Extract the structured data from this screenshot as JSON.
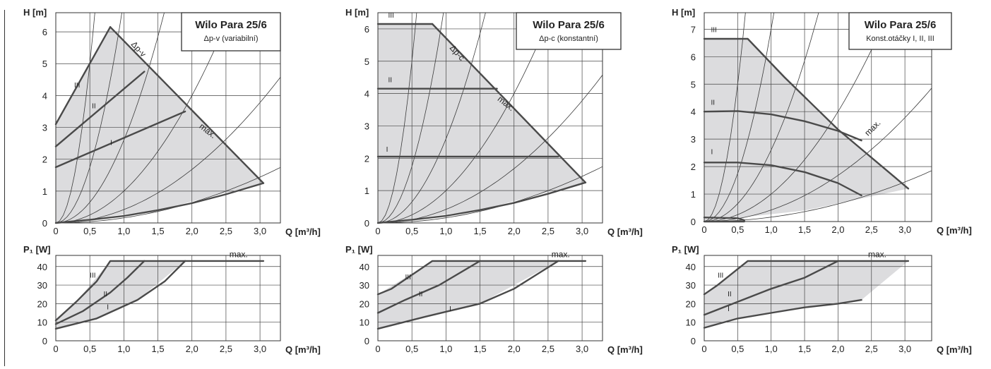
{
  "chart_data": [
    {
      "type": "line",
      "id": "h1",
      "title": "Wilo Para 25/6",
      "subtitle": "Δp-v (variabilní)",
      "ylabel": "H [m]",
      "xlabel": "Q [m³/h]",
      "xlim": [
        0,
        3.3
      ],
      "ylim": [
        0,
        6.6
      ],
      "xticks": [
        "0",
        "0,5",
        "1,0",
        "1,5",
        "2,0",
        "2,5",
        "3,0"
      ],
      "yticks": [
        "0",
        "1",
        "2",
        "3",
        "4",
        "5",
        "6"
      ],
      "envelope": [
        [
          0,
          0
        ],
        [
          0,
          3.1
        ],
        [
          0.8,
          6.15
        ],
        [
          3.05,
          1.25
        ],
        [
          1.5,
          0.4
        ],
        [
          0,
          0
        ]
      ],
      "series": [
        {
          "name": "III",
          "points": [
            [
              0,
              3.1
            ],
            [
              0.8,
              6.15
            ]
          ]
        },
        {
          "name": "II",
          "points": [
            [
              0,
              2.4
            ],
            [
              1.3,
              4.75
            ]
          ]
        },
        {
          "name": "I",
          "points": [
            [
              0,
              1.75
            ],
            [
              1.9,
              3.5
            ]
          ]
        },
        {
          "name": "max.",
          "points": [
            [
              0.8,
              6.15
            ],
            [
              3.05,
              1.25
            ]
          ]
        },
        {
          "name": "",
          "points": [
            [
              0,
              0
            ],
            [
              0.5,
              0.1
            ],
            [
              1.0,
              0.22
            ],
            [
              1.5,
              0.4
            ],
            [
              2.0,
              0.62
            ],
            [
              2.5,
              0.9
            ],
            [
              3.05,
              1.25
            ]
          ]
        }
      ],
      "annotations": [
        {
          "text": "Δp-v",
          "x": 1.1,
          "y": 5.6
        },
        {
          "text": "III",
          "x": 0.27,
          "y": 4.25
        },
        {
          "text": "II",
          "x": 0.53,
          "y": 3.6
        },
        {
          "text": "I",
          "x": 0.8,
          "y": 2.45
        },
        {
          "text": "max.",
          "x": 2.1,
          "y": 3.0
        }
      ]
    },
    {
      "type": "line",
      "id": "h2",
      "title": "Wilo Para 25/6",
      "subtitle": "Δp-c (konstantní)",
      "ylabel": "H [m]",
      "xlabel": "Q [m³/h]",
      "xlim": [
        0,
        3.3
      ],
      "ylim": [
        0,
        6.5
      ],
      "xticks": [
        "0",
        "0,5",
        "1,0",
        "1,5",
        "2,0",
        "2,5",
        "3,0"
      ],
      "yticks": [
        "0",
        "1",
        "2",
        "3",
        "4",
        "5",
        "6"
      ],
      "envelope": [
        [
          0,
          0
        ],
        [
          0,
          6.15
        ],
        [
          0.8,
          6.15
        ],
        [
          3.05,
          1.25
        ],
        [
          1.5,
          0.4
        ],
        [
          0,
          0
        ]
      ],
      "series": [
        {
          "name": "III",
          "points": [
            [
              0,
              6.15
            ],
            [
              0.8,
              6.15
            ]
          ]
        },
        {
          "name": "II",
          "points": [
            [
              0,
              4.15
            ],
            [
              1.75,
              4.15
            ]
          ]
        },
        {
          "name": "I",
          "points": [
            [
              0,
              2.05
            ],
            [
              2.65,
              2.05
            ]
          ]
        },
        {
          "name": "max.",
          "points": [
            [
              0.8,
              6.15
            ],
            [
              3.05,
              1.25
            ]
          ]
        },
        {
          "name": "",
          "points": [
            [
              0,
              0
            ],
            [
              0.5,
              0.1
            ],
            [
              1.0,
              0.22
            ],
            [
              1.5,
              0.4
            ],
            [
              2.0,
              0.62
            ],
            [
              2.5,
              0.9
            ],
            [
              3.05,
              1.25
            ]
          ]
        }
      ],
      "annotations": [
        {
          "text": "Δp-c",
          "x": 1.05,
          "y": 5.4
        },
        {
          "text": "III",
          "x": 0.15,
          "y": 6.35
        },
        {
          "text": "II",
          "x": 0.15,
          "y": 4.35
        },
        {
          "text": "I",
          "x": 0.12,
          "y": 2.2
        },
        {
          "text": "max.",
          "x": 1.75,
          "y": 3.8
        }
      ]
    },
    {
      "type": "line",
      "id": "h3",
      "title": "Wilo Para 25/6",
      "subtitle": "Konst.otáčky I, II, III",
      "ylabel": "H [m]",
      "xlabel": "Q [m³/h]",
      "xlim": [
        0,
        3.4
      ],
      "ylim": [
        0,
        7.6
      ],
      "xticks": [
        "0",
        "0,5",
        "1,0",
        "1,5",
        "2,0",
        "2,5",
        "3,0"
      ],
      "yticks": [
        "0",
        "1",
        "2",
        "3",
        "4",
        "5",
        "6",
        "7"
      ],
      "envelope": [
        [
          0,
          0
        ],
        [
          0,
          6.65
        ],
        [
          0.65,
          6.65
        ],
        [
          2.0,
          3.35
        ],
        [
          3.05,
          1.2
        ],
        [
          1.5,
          0.4
        ],
        [
          0,
          0
        ]
      ],
      "series": [
        {
          "name": "III",
          "points": [
            [
              0,
              6.65
            ],
            [
              0.65,
              6.65
            ],
            [
              1.2,
              5.25
            ],
            [
              2.0,
              3.35
            ],
            [
              3.05,
              1.2
            ]
          ]
        },
        {
          "name": "II",
          "points": [
            [
              0,
              4.0
            ],
            [
              0.5,
              4.02
            ],
            [
              1.0,
              3.9
            ],
            [
              1.5,
              3.65
            ],
            [
              2.0,
              3.3
            ],
            [
              2.35,
              2.95
            ]
          ]
        },
        {
          "name": "I",
          "points": [
            [
              0,
              2.15
            ],
            [
              0.5,
              2.15
            ],
            [
              1.0,
              2.05
            ],
            [
              1.5,
              1.8
            ],
            [
              2.0,
              1.4
            ],
            [
              2.35,
              0.95
            ]
          ]
        },
        {
          "name": "",
          "points": [
            [
              0,
              0.15
            ],
            [
              0.5,
              0.12
            ],
            [
              0.6,
              0.05
            ]
          ]
        },
        {
          "name": "",
          "points": [
            [
              0,
              0
            ],
            [
              0.6,
              0
            ]
          ]
        }
      ],
      "annotations": [
        {
          "text": "III",
          "x": 0.1,
          "y": 6.9
        },
        {
          "text": "II",
          "x": 0.1,
          "y": 4.25
        },
        {
          "text": "I",
          "x": 0.1,
          "y": 2.45
        },
        {
          "text": "max.",
          "x": 2.45,
          "y": 3.1
        }
      ]
    },
    {
      "type": "line",
      "id": "p1",
      "ylabel": "P₁ [W]",
      "xlabel": "Q [m³/h]",
      "xlim": [
        0,
        3.3
      ],
      "ylim": [
        0,
        46
      ],
      "xticks": [
        "0",
        "0,5",
        "1,0",
        "1,5",
        "2,0",
        "2,5",
        "3,0"
      ],
      "yticks": [
        "0",
        "10",
        "20",
        "30",
        "40"
      ],
      "envelope": [
        [
          0,
          6.5
        ],
        [
          0,
          11
        ],
        [
          0.3,
          21
        ],
        [
          0.8,
          43
        ],
        [
          1.9,
          43
        ],
        [
          1.2,
          22
        ],
        [
          0.6,
          12
        ],
        [
          0,
          6.5
        ]
      ],
      "series": [
        {
          "name": "III",
          "points": [
            [
              0,
              11
            ],
            [
              0.3,
              21
            ],
            [
              0.6,
              32
            ],
            [
              0.8,
              43
            ],
            [
              3.05,
              43
            ]
          ]
        },
        {
          "name": "II",
          "points": [
            [
              0,
              9
            ],
            [
              0.4,
              16
            ],
            [
              0.8,
              26
            ],
            [
              1.05,
              34
            ],
            [
              1.3,
              43
            ]
          ]
        },
        {
          "name": "I",
          "points": [
            [
              0,
              6.5
            ],
            [
              0.6,
              12
            ],
            [
              1.2,
              22
            ],
            [
              1.6,
              32
            ],
            [
              1.9,
              43
            ]
          ]
        }
      ],
      "annotations": [
        {
          "text": "max.",
          "x": 2.55,
          "y": 45
        },
        {
          "text": "III",
          "x": 0.5,
          "y": 34
        },
        {
          "text": "II",
          "x": 0.7,
          "y": 24
        },
        {
          "text": "I",
          "x": 0.75,
          "y": 17
        }
      ]
    },
    {
      "type": "line",
      "id": "p2",
      "ylabel": "P₁ [W]",
      "xlabel": "Q [m³/h]",
      "xlim": [
        0,
        3.3
      ],
      "ylim": [
        0,
        46
      ],
      "xticks": [
        "0",
        "0,5",
        "1,0",
        "1,5",
        "2,0",
        "2,5",
        "3,0"
      ],
      "yticks": [
        "0",
        "10",
        "20",
        "30",
        "40"
      ],
      "envelope": [
        [
          0,
          6.5
        ],
        [
          0,
          25
        ],
        [
          0.8,
          43
        ],
        [
          2.65,
          43
        ],
        [
          1.5,
          20
        ],
        [
          0,
          6.5
        ]
      ],
      "series": [
        {
          "name": "III",
          "points": [
            [
              0,
              25
            ],
            [
              0.2,
              28
            ],
            [
              0.8,
              43
            ],
            [
              3.05,
              43
            ]
          ]
        },
        {
          "name": "II",
          "points": [
            [
              0,
              15
            ],
            [
              0.4,
              22
            ],
            [
              0.9,
              30
            ],
            [
              1.5,
              43
            ]
          ]
        },
        {
          "name": "I",
          "points": [
            [
              0,
              6.5
            ],
            [
              0.7,
              13
            ],
            [
              1.5,
              20
            ],
            [
              2.0,
              28
            ],
            [
              2.65,
              43
            ]
          ]
        }
      ],
      "annotations": [
        {
          "text": "max.",
          "x": 2.55,
          "y": 45
        },
        {
          "text": "III",
          "x": 0.4,
          "y": 33
        },
        {
          "text": "II",
          "x": 0.6,
          "y": 24
        },
        {
          "text": "I",
          "x": 1.05,
          "y": 16
        }
      ]
    },
    {
      "type": "line",
      "id": "p3",
      "ylabel": "P₁ [W]",
      "xlabel": "Q [m³/h]",
      "xlim": [
        0,
        3.4
      ],
      "ylim": [
        0,
        46
      ],
      "xticks": [
        "0",
        "0,5",
        "1,0",
        "1,5",
        "2,0",
        "2,5",
        "3,0"
      ],
      "yticks": [
        "0",
        "10",
        "20",
        "30",
        "40"
      ],
      "envelope": [
        [
          0,
          7
        ],
        [
          0,
          25
        ],
        [
          0.2,
          30
        ],
        [
          0.65,
          43
        ],
        [
          3.05,
          43
        ],
        [
          2.35,
          22
        ],
        [
          1.5,
          18
        ],
        [
          0.5,
          12
        ],
        [
          0,
          7
        ]
      ],
      "series": [
        {
          "name": "III",
          "points": [
            [
              0,
              25
            ],
            [
              0.2,
              30
            ],
            [
              0.65,
              43
            ],
            [
              3.05,
              43
            ]
          ]
        },
        {
          "name": "II",
          "points": [
            [
              0,
              14
            ],
            [
              0.5,
              21
            ],
            [
              1.0,
              28
            ],
            [
              1.5,
              34
            ],
            [
              2.0,
              43
            ]
          ]
        },
        {
          "name": "I",
          "points": [
            [
              0,
              7
            ],
            [
              0.5,
              12
            ],
            [
              1.0,
              15
            ],
            [
              1.5,
              18
            ],
            [
              2.0,
              20
            ],
            [
              2.35,
              22
            ]
          ]
        }
      ],
      "annotations": [
        {
          "text": "max.",
          "x": 2.45,
          "y": 45
        },
        {
          "text": "III",
          "x": 0.2,
          "y": 34
        },
        {
          "text": "II",
          "x": 0.35,
          "y": 24
        },
        {
          "text": "I",
          "x": 0.35,
          "y": 16
        }
      ]
    }
  ]
}
